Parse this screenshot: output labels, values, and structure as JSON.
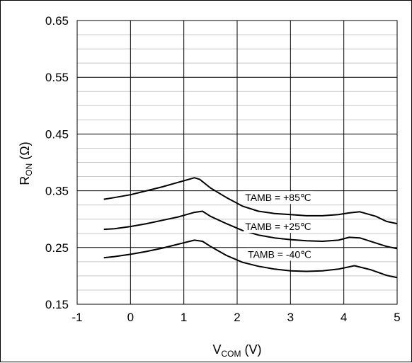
{
  "chart_data": {
    "type": "line",
    "xlabel": {
      "main": "V",
      "sub": "COM",
      "rest": " (V)"
    },
    "ylabel": {
      "main": "R",
      "sub": "ON",
      "rest": " (Ω)"
    },
    "xlim": [
      -1,
      5
    ],
    "ylim": [
      0.15,
      0.65
    ],
    "x_ticks": [
      -1,
      0,
      1,
      2,
      3,
      4,
      5
    ],
    "x_tick_labels": [
      "-1",
      "0",
      "1",
      "2",
      "3",
      "4",
      "5"
    ],
    "y_ticks": [
      0.15,
      0.25,
      0.35,
      0.45,
      0.55,
      0.65
    ],
    "y_tick_labels": [
      "0.15",
      "0.25",
      "0.35",
      "0.45",
      "0.55",
      "0.65"
    ],
    "minor_y_step": 0.025,
    "grid": true,
    "series": [
      {
        "name": "TAMB = +85℃",
        "x": [
          -0.5,
          -0.3,
          0.0,
          0.3,
          0.6,
          0.9,
          1.2,
          1.3,
          1.5,
          1.8,
          2.1,
          2.4,
          2.7,
          3.0,
          3.3,
          3.6,
          3.9,
          4.1,
          4.3,
          4.6,
          4.8,
          5.0
        ],
        "y": [
          0.335,
          0.338,
          0.343,
          0.35,
          0.357,
          0.365,
          0.373,
          0.37,
          0.355,
          0.338,
          0.323,
          0.314,
          0.31,
          0.308,
          0.306,
          0.306,
          0.308,
          0.311,
          0.313,
          0.305,
          0.296,
          0.292
        ]
      },
      {
        "name": "TAMB = +25℃",
        "x": [
          -0.5,
          -0.3,
          0.0,
          0.3,
          0.6,
          0.9,
          1.2,
          1.35,
          1.5,
          1.8,
          2.1,
          2.4,
          2.7,
          3.0,
          3.3,
          3.6,
          3.9,
          4.1,
          4.3,
          4.6,
          4.8,
          5.0
        ],
        "y": [
          0.282,
          0.283,
          0.287,
          0.292,
          0.298,
          0.304,
          0.312,
          0.314,
          0.305,
          0.292,
          0.28,
          0.272,
          0.267,
          0.264,
          0.262,
          0.261,
          0.263,
          0.268,
          0.267,
          0.258,
          0.252,
          0.248
        ]
      },
      {
        "name": "TAMB = -40℃",
        "x": [
          -0.5,
          -0.3,
          0.0,
          0.3,
          0.6,
          0.9,
          1.2,
          1.35,
          1.5,
          1.8,
          2.1,
          2.4,
          2.7,
          3.0,
          3.3,
          3.6,
          3.9,
          4.2,
          4.5,
          4.8,
          5.0
        ],
        "y": [
          0.232,
          0.234,
          0.238,
          0.243,
          0.249,
          0.256,
          0.263,
          0.261,
          0.252,
          0.236,
          0.224,
          0.217,
          0.212,
          0.209,
          0.208,
          0.209,
          0.212,
          0.218,
          0.211,
          0.201,
          0.197
        ]
      }
    ],
    "annotations": [
      {
        "text": "TAMB = +85℃",
        "x": 2.15,
        "y": 0.338
      },
      {
        "text": "TAMB = +25℃",
        "x": 2.15,
        "y": 0.287
      },
      {
        "text": "TAMB = -40℃",
        "x": 2.2,
        "y": 0.238
      }
    ]
  }
}
